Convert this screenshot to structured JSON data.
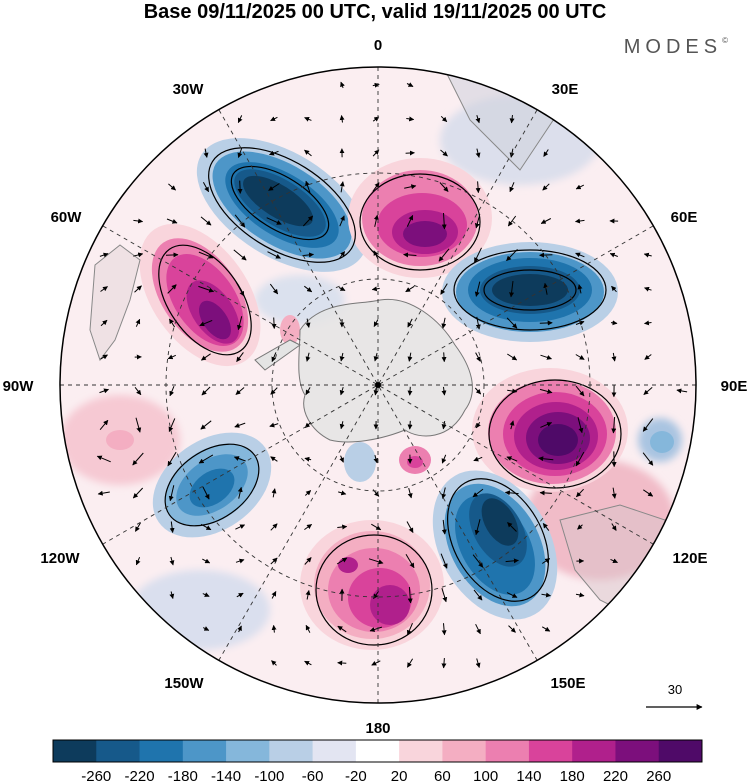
{
  "title": "Base 09/11/2025 00 UTC, valid 19/11/2025 00 UTC",
  "brand": "MODES",
  "brand_mark": "©",
  "longitude_labels": {
    "lon_0": "0",
    "lon_30E": "30E",
    "lon_60E": "60E",
    "lon_90E": "90E",
    "lon_120E": "120E",
    "lon_150E": "150E",
    "lon_180": "180",
    "lon_150W": "150W",
    "lon_120W": "120W",
    "lon_90W": "90W",
    "lon_60W": "60W",
    "lon_30W": "30W"
  },
  "vector_reference": {
    "value": "30"
  },
  "colorbar": {
    "ticks": [
      "-260",
      "-220",
      "-180",
      "-140",
      "-100",
      "-60",
      "-20",
      "20",
      "60",
      "100",
      "140",
      "180",
      "220",
      "260"
    ],
    "colors": [
      "#0d3b5c",
      "#16598a",
      "#1f74ad",
      "#4d96c8",
      "#85b7db",
      "#b9cfe6",
      "#e3e5f2",
      "#ffffff",
      "#f9d5dc",
      "#f4aec2",
      "#ec7fb0",
      "#d9439b",
      "#b0208c",
      "#7c0f7c",
      "#4f0a68"
    ]
  },
  "anomalies": [
    {
      "name": "neg-atlantic",
      "value": -260
    },
    {
      "name": "pos-weddell",
      "value": 260
    },
    {
      "name": "pos-southatlantic",
      "value": 220
    },
    {
      "name": "neg-indian",
      "value": -220
    },
    {
      "name": "pos-indian-east",
      "value": 260
    },
    {
      "name": "neg-australia-south",
      "value": -260
    },
    {
      "name": "pos-ross",
      "value": 180
    },
    {
      "name": "neg-pacific",
      "value": -180
    }
  ]
}
